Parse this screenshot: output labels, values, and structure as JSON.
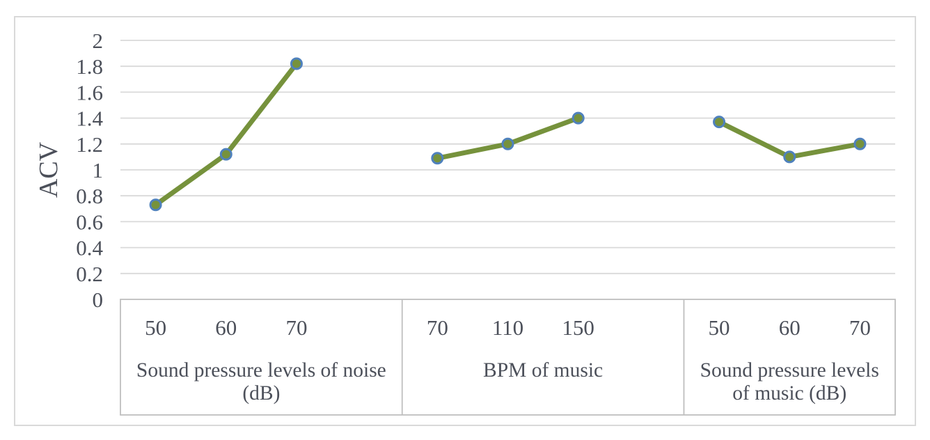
{
  "figure": {
    "background": "#ffffff",
    "border_color": "#d9d9d9"
  },
  "chart_data": {
    "type": "line",
    "title": "",
    "xlabel": "",
    "ylabel": "ACV",
    "ylim": [
      0,
      2
    ],
    "ytick_step": 0.2,
    "ytick_labels": [
      "0",
      "0.2",
      "0.4",
      "0.6",
      "0.8",
      "1",
      "1.2",
      "1.4",
      "1.6",
      "1.8",
      "2"
    ],
    "grid": true,
    "legend_position": "none",
    "series_color": "#76923C",
    "marker_fill": "#76923C",
    "marker_edge": "#4F81BD",
    "gridline_color": "#D9D9D9",
    "axis_line_color": "#BFBFBF",
    "text_color": "#4c505a",
    "groups": [
      {
        "id": "noise",
        "title_lines": [
          "Sound pressure levels of noise",
          "（dB）"
        ],
        "categories": [
          "50",
          "60",
          "70"
        ],
        "values": [
          0.73,
          1.12,
          1.82
        ]
      },
      {
        "id": "bpm",
        "title_lines": [
          "BPM of music"
        ],
        "categories": [
          "70",
          "110",
          "150"
        ],
        "values": [
          1.09,
          1.2,
          1.4
        ]
      },
      {
        "id": "music",
        "title_lines": [
          "Sound pressure levels",
          "of music （dB）"
        ],
        "categories": [
          "50",
          "60",
          "70"
        ],
        "values": [
          1.37,
          1.1,
          1.2
        ]
      }
    ]
  }
}
